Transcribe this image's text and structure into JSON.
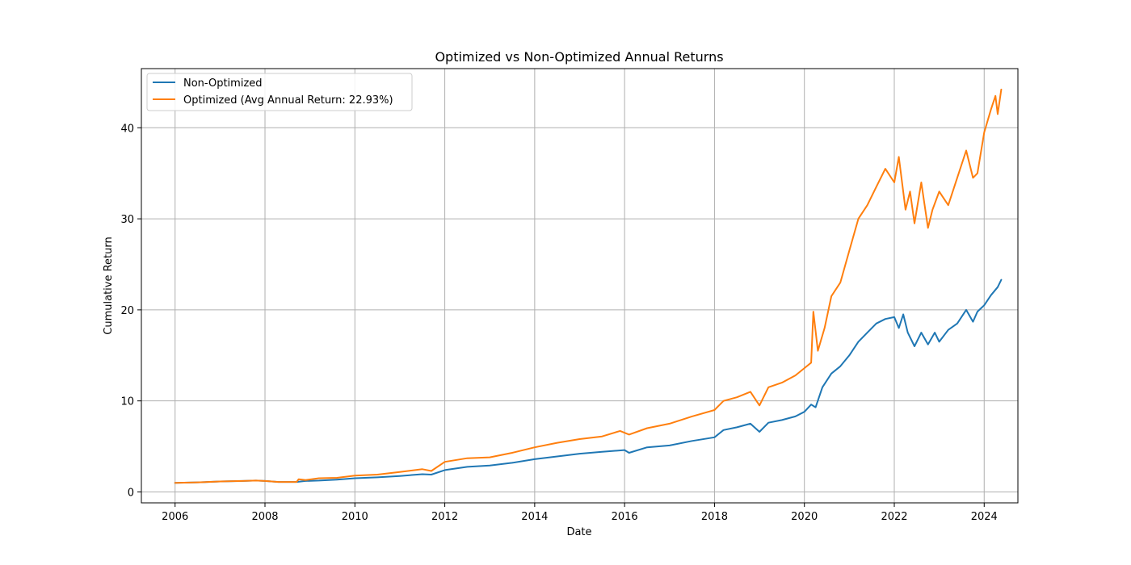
{
  "chart_data": {
    "type": "line",
    "title": "Optimized vs Non-Optimized Annual Returns",
    "xlabel": "Date",
    "ylabel": "Cumulative Return",
    "xlim": [
      2005.25,
      2024.75
    ],
    "ylim": [
      -1.2,
      46.5
    ],
    "x_ticks": [
      2006,
      2008,
      2010,
      2012,
      2014,
      2016,
      2018,
      2020,
      2022,
      2024
    ],
    "y_ticks": [
      0,
      10,
      20,
      30,
      40
    ],
    "grid": true,
    "legend_position": "upper-left",
    "series": [
      {
        "name": "Non-Optimized",
        "color": "#1f77b4",
        "x": [
          2006.0,
          2006.5,
          2007.0,
          2007.5,
          2007.8,
          2008.0,
          2008.3,
          2008.7,
          2008.9,
          2009.2,
          2009.6,
          2010.0,
          2010.5,
          2011.0,
          2011.5,
          2011.7,
          2012.0,
          2012.5,
          2013.0,
          2013.5,
          2014.0,
          2014.5,
          2015.0,
          2015.5,
          2016.0,
          2016.1,
          2016.5,
          2017.0,
          2017.5,
          2018.0,
          2018.2,
          2018.5,
          2018.8,
          2019.0,
          2019.2,
          2019.5,
          2019.8,
          2020.0,
          2020.15,
          2020.25,
          2020.4,
          2020.6,
          2020.8,
          2021.0,
          2021.2,
          2021.4,
          2021.6,
          2021.8,
          2022.0,
          2022.1,
          2022.2,
          2022.3,
          2022.45,
          2022.6,
          2022.75,
          2022.9,
          2023.0,
          2023.2,
          2023.4,
          2023.6,
          2023.75,
          2023.85,
          2024.0,
          2024.15,
          2024.3,
          2024.38
        ],
        "values": [
          1.0,
          1.05,
          1.15,
          1.2,
          1.25,
          1.2,
          1.1,
          1.1,
          1.2,
          1.25,
          1.35,
          1.5,
          1.6,
          1.75,
          1.95,
          1.9,
          2.4,
          2.75,
          2.9,
          3.2,
          3.6,
          3.9,
          4.2,
          4.4,
          4.6,
          4.3,
          4.9,
          5.1,
          5.6,
          6.0,
          6.8,
          7.1,
          7.5,
          6.6,
          7.6,
          7.9,
          8.3,
          8.8,
          9.6,
          9.3,
          11.5,
          13.0,
          13.8,
          15.0,
          16.5,
          17.5,
          18.5,
          19.0,
          19.2,
          18.0,
          19.5,
          17.5,
          16.0,
          17.5,
          16.2,
          17.5,
          16.5,
          17.8,
          18.5,
          20.0,
          18.7,
          19.8,
          20.5,
          21.6,
          22.5,
          23.3
        ]
      },
      {
        "name": "Optimized (Avg Annual Return: 22.93%)",
        "color": "#ff7f0e",
        "x": [
          2006.0,
          2006.5,
          2007.0,
          2007.5,
          2007.8,
          2008.0,
          2008.3,
          2008.7,
          2008.75,
          2008.9,
          2009.2,
          2009.6,
          2010.0,
          2010.5,
          2011.0,
          2011.5,
          2011.7,
          2012.0,
          2012.5,
          2013.0,
          2013.5,
          2014.0,
          2014.5,
          2015.0,
          2015.5,
          2015.9,
          2016.1,
          2016.5,
          2017.0,
          2017.5,
          2018.0,
          2018.2,
          2018.5,
          2018.8,
          2019.0,
          2019.2,
          2019.5,
          2019.8,
          2020.0,
          2020.15,
          2020.2,
          2020.3,
          2020.45,
          2020.6,
          2020.8,
          2021.0,
          2021.2,
          2021.4,
          2021.6,
          2021.8,
          2022.0,
          2022.1,
          2022.25,
          2022.35,
          2022.45,
          2022.6,
          2022.75,
          2022.85,
          2023.0,
          2023.2,
          2023.4,
          2023.6,
          2023.75,
          2023.85,
          2024.0,
          2024.15,
          2024.25,
          2024.3,
          2024.38
        ],
        "values": [
          1.0,
          1.05,
          1.15,
          1.2,
          1.25,
          1.2,
          1.1,
          1.1,
          1.4,
          1.3,
          1.5,
          1.55,
          1.8,
          1.9,
          2.2,
          2.5,
          2.3,
          3.3,
          3.7,
          3.8,
          4.3,
          4.9,
          5.4,
          5.8,
          6.1,
          6.7,
          6.3,
          7.0,
          7.5,
          8.3,
          9.0,
          10.0,
          10.4,
          11.0,
          9.5,
          11.5,
          12.0,
          12.8,
          13.6,
          14.2,
          19.8,
          15.5,
          18.0,
          21.5,
          23.0,
          26.5,
          30.0,
          31.5,
          33.5,
          35.5,
          34.0,
          36.8,
          31.0,
          33.0,
          29.5,
          34.0,
          29.0,
          31.0,
          33.0,
          31.5,
          34.5,
          37.5,
          34.5,
          35.0,
          39.5,
          42.0,
          43.5,
          41.5,
          44.2
        ]
      }
    ]
  }
}
